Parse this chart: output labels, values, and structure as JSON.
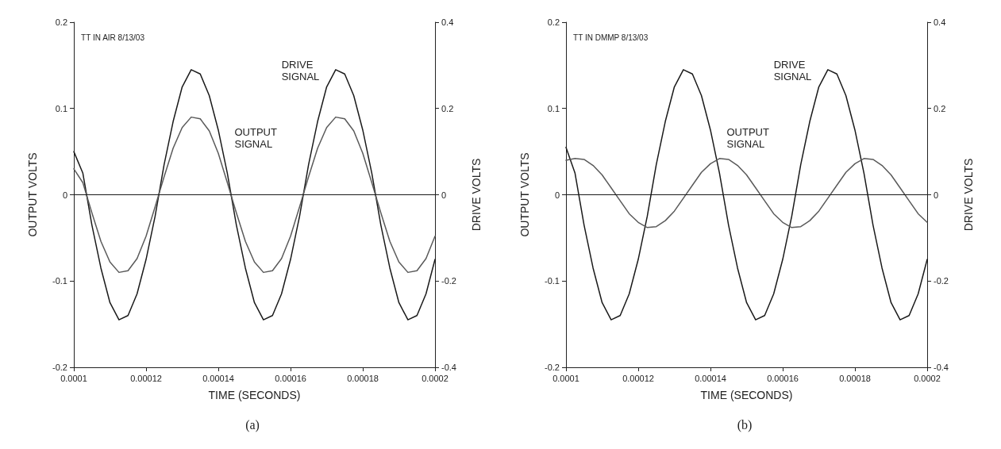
{
  "chart_data": [
    {
      "type": "line",
      "title": "(a)",
      "xlabel": "TIME (SECONDS)",
      "ylabel": "OUTPUT VOLTS",
      "y2label": "DRIVE VOLTS",
      "x": [
        0.0001,
        0.0001025,
        0.000105,
        0.0001075,
        0.00011,
        0.0001125,
        0.000115,
        0.0001175,
        0.00012,
        0.0001225,
        0.000125,
        0.0001275,
        0.00013,
        0.0001325,
        0.000135,
        0.0001375,
        0.00014,
        0.0001425,
        0.000145,
        0.0001475,
        0.00015,
        0.0001525,
        0.000155,
        0.0001575,
        0.00016,
        0.0001625,
        0.000165,
        0.0001675,
        0.00017,
        0.0001725,
        0.000175,
        0.0001775,
        0.00018,
        0.0001825,
        0.000185,
        0.0001875,
        0.00019,
        0.0001925,
        0.000195,
        0.0001975,
        0.0002
      ],
      "series": [
        {
          "axis": "y2",
          "color": "#1a1a1a",
          "values": [
            0.1,
            0.05,
            -0.07,
            -0.17,
            -0.25,
            -0.29,
            -0.28,
            -0.23,
            -0.15,
            -0.05,
            0.07,
            0.17,
            0.25,
            0.29,
            0.28,
            0.23,
            0.15,
            0.05,
            -0.07,
            -0.17,
            -0.25,
            -0.29,
            -0.28,
            -0.23,
            -0.15,
            -0.05,
            0.07,
            0.17,
            0.25,
            0.29,
            0.28,
            0.23,
            0.15,
            0.05,
            -0.07,
            -0.17,
            -0.25,
            -0.29,
            -0.28,
            -0.23,
            -0.15
          ]
        },
        {
          "color": "#5a5a5a",
          "values": [
            0.03,
            0.014,
            -0.021,
            -0.054,
            -0.078,
            -0.09,
            -0.088,
            -0.074,
            -0.048,
            -0.014,
            0.021,
            0.054,
            0.078,
            0.09,
            0.088,
            0.074,
            0.048,
            0.014,
            -0.021,
            -0.054,
            -0.078,
            -0.09,
            -0.088,
            -0.074,
            -0.048,
            -0.014,
            0.021,
            0.054,
            0.078,
            0.09,
            0.088,
            0.074,
            0.048,
            0.014,
            -0.021,
            -0.054,
            -0.078,
            -0.09,
            -0.088,
            -0.074,
            -0.048
          ]
        }
      ],
      "xlim": [
        0.0001,
        0.0002
      ],
      "xticks": [
        0.0001,
        0.00012,
        0.00014,
        0.00016,
        0.00018,
        0.0002
      ],
      "ylim": [
        -0.2,
        0.2
      ],
      "yticks": [
        -0.2,
        -0.1,
        0,
        0.1,
        0.2
      ],
      "y2lim": [
        -0.4,
        0.4
      ],
      "y2ticks": [
        -0.4,
        -0.2,
        0,
        0.2,
        0.4
      ],
      "ref_lines": [
        {
          "axis": "y",
          "value": 0,
          "color": "#1a1a1a"
        }
      ],
      "annotations": [
        "TT IN AIR 8/13/03",
        "DRIVE SIGNAL",
        "OUTPUT SIGNAL"
      ],
      "grid": false,
      "marker": "none",
      "line_style": "solid"
    },
    {
      "type": "line",
      "title": "(b)",
      "xlabel": "TIME (SECONDS)",
      "ylabel": "OUTPUT VOLTS",
      "y2label": "DRIVE VOLTS",
      "x": [
        0.0001,
        0.0001025,
        0.000105,
        0.0001075,
        0.00011,
        0.0001125,
        0.000115,
        0.0001175,
        0.00012,
        0.0001225,
        0.000125,
        0.0001275,
        0.00013,
        0.0001325,
        0.000135,
        0.0001375,
        0.00014,
        0.0001425,
        0.000145,
        0.0001475,
        0.00015,
        0.0001525,
        0.000155,
        0.0001575,
        0.00016,
        0.0001625,
        0.000165,
        0.0001675,
        0.00017,
        0.0001725,
        0.000175,
        0.0001775,
        0.00018,
        0.0001825,
        0.000185,
        0.0001875,
        0.00019,
        0.0001925,
        0.000195,
        0.0001975,
        0.0002
      ],
      "series": [
        {
          "axis": "y2",
          "color": "#1a1a1a",
          "values": [
            0.11,
            0.05,
            -0.07,
            -0.17,
            -0.25,
            -0.29,
            -0.28,
            -0.23,
            -0.15,
            -0.05,
            0.07,
            0.17,
            0.25,
            0.29,
            0.28,
            0.23,
            0.15,
            0.05,
            -0.07,
            -0.17,
            -0.25,
            -0.29,
            -0.28,
            -0.23,
            -0.15,
            -0.05,
            0.07,
            0.17,
            0.25,
            0.29,
            0.28,
            0.23,
            0.15,
            0.05,
            -0.07,
            -0.17,
            -0.25,
            -0.29,
            -0.28,
            -0.23,
            -0.15
          ]
        },
        {
          "color": "#5a5a5a",
          "values": [
            0.04,
            0.042,
            0.041,
            0.034,
            0.023,
            0.008,
            -0.007,
            -0.022,
            -0.032,
            -0.038,
            -0.037,
            -0.03,
            -0.019,
            -0.004,
            0.011,
            0.026,
            0.036,
            0.042,
            0.041,
            0.034,
            0.023,
            0.008,
            -0.007,
            -0.022,
            -0.032,
            -0.038,
            -0.037,
            -0.03,
            -0.019,
            -0.004,
            0.011,
            0.026,
            0.036,
            0.042,
            0.041,
            0.034,
            0.023,
            0.008,
            -0.007,
            -0.022,
            -0.032
          ]
        }
      ],
      "xlim": [
        0.0001,
        0.0002
      ],
      "xticks": [
        0.0001,
        0.00012,
        0.00014,
        0.00016,
        0.00018,
        0.0002
      ],
      "ylim": [
        -0.2,
        0.2
      ],
      "yticks": [
        -0.2,
        -0.1,
        0,
        0.1,
        0.2
      ],
      "y2lim": [
        -0.4,
        0.4
      ],
      "y2ticks": [
        -0.4,
        -0.2,
        0,
        0.2,
        0.4
      ],
      "ref_lines": [
        {
          "axis": "y",
          "value": 0,
          "color": "#1a1a1a"
        }
      ],
      "annotations": [
        "TT IN DMMP 8/13/03",
        "DRIVE SIGNAL",
        "OUTPUT SIGNAL"
      ],
      "grid": false,
      "marker": "none",
      "line_style": "solid"
    }
  ]
}
